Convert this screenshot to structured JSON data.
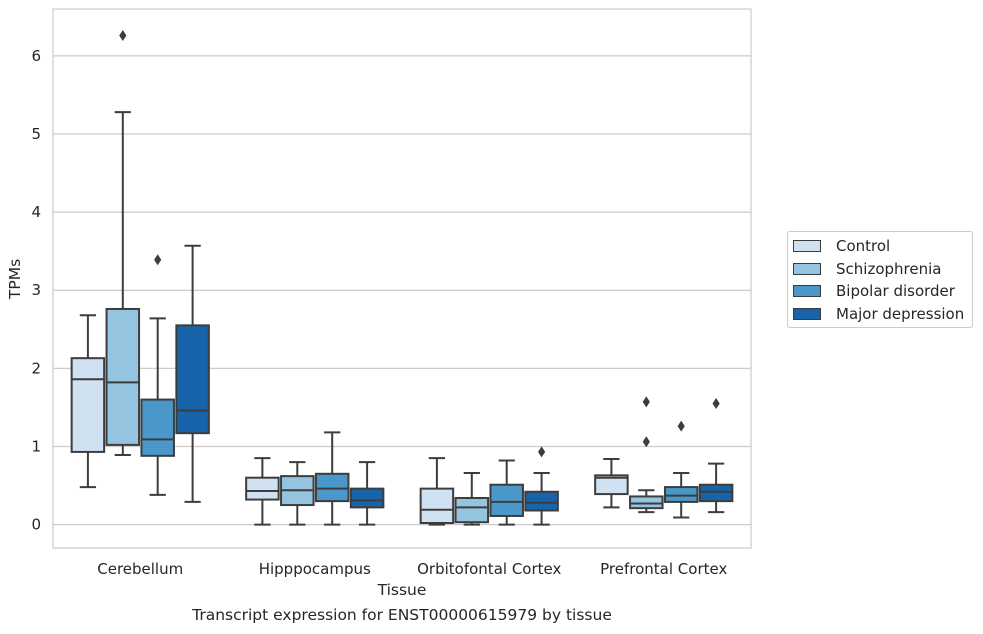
{
  "chart_data": {
    "type": "box",
    "title": "",
    "caption": "Transcript expression for ENST00000615979 by tissue",
    "xlabel": "Tissue",
    "ylabel": "TPMs",
    "ylim": [
      -0.3,
      6.6
    ],
    "yticks": [
      "0",
      "1",
      "2",
      "3",
      "4",
      "5",
      "6"
    ],
    "grid": true,
    "legend_position": "right",
    "categories": [
      "Cerebellum",
      "Hipppocampus",
      "Orbitofontal Cortex",
      "Prefrontal Cortex"
    ],
    "series": [
      {
        "name": "Control",
        "color": "#d0e1f2",
        "boxes": [
          {
            "whislo": 0.48,
            "q1": 0.93,
            "med": 1.86,
            "q3": 2.13,
            "whishi": 2.68,
            "fliers": []
          },
          {
            "whislo": 0.0,
            "q1": 0.32,
            "med": 0.43,
            "q3": 0.6,
            "whishi": 0.85,
            "fliers": []
          },
          {
            "whislo": 0.0,
            "q1": 0.02,
            "med": 0.19,
            "q3": 0.46,
            "whishi": 0.85,
            "fliers": []
          },
          {
            "whislo": 0.22,
            "q1": 0.39,
            "med": 0.6,
            "q3": 0.63,
            "whishi": 0.84,
            "fliers": []
          }
        ]
      },
      {
        "name": "Schizophrenia",
        "color": "#94c4df",
        "boxes": [
          {
            "whislo": 0.89,
            "q1": 1.02,
            "med": 1.82,
            "q3": 2.76,
            "whishi": 5.28,
            "fliers": [
              6.26
            ]
          },
          {
            "whislo": 0.0,
            "q1": 0.25,
            "med": 0.44,
            "q3": 0.62,
            "whishi": 0.8,
            "fliers": []
          },
          {
            "whislo": 0.0,
            "q1": 0.03,
            "med": 0.22,
            "q3": 0.34,
            "whishi": 0.66,
            "fliers": []
          },
          {
            "whislo": 0.16,
            "q1": 0.21,
            "med": 0.27,
            "q3": 0.36,
            "whishi": 0.44,
            "fliers": [
              1.06,
              1.57
            ]
          }
        ]
      },
      {
        "name": "Bipolar disorder",
        "color": "#4a98c9",
        "boxes": [
          {
            "whislo": 0.38,
            "q1": 0.88,
            "med": 1.09,
            "q3": 1.6,
            "whishi": 2.64,
            "fliers": [
              3.39
            ]
          },
          {
            "whislo": 0.0,
            "q1": 0.3,
            "med": 0.46,
            "q3": 0.65,
            "whishi": 1.18,
            "fliers": []
          },
          {
            "whislo": 0.0,
            "q1": 0.11,
            "med": 0.29,
            "q3": 0.51,
            "whishi": 0.82,
            "fliers": []
          },
          {
            "whislo": 0.09,
            "q1": 0.29,
            "med": 0.37,
            "q3": 0.48,
            "whishi": 0.66,
            "fliers": [
              1.26
            ]
          }
        ]
      },
      {
        "name": "Major depression",
        "color": "#1764ab",
        "boxes": [
          {
            "whislo": 0.29,
            "q1": 1.17,
            "med": 1.46,
            "q3": 2.55,
            "whishi": 3.57,
            "fliers": []
          },
          {
            "whislo": 0.0,
            "q1": 0.22,
            "med": 0.31,
            "q3": 0.46,
            "whishi": 0.8,
            "fliers": []
          },
          {
            "whislo": 0.0,
            "q1": 0.18,
            "med": 0.28,
            "q3": 0.42,
            "whishi": 0.66,
            "fliers": [
              0.93
            ]
          },
          {
            "whislo": 0.16,
            "q1": 0.3,
            "med": 0.42,
            "q3": 0.51,
            "whishi": 0.78,
            "fliers": [
              1.55
            ]
          }
        ]
      }
    ]
  }
}
